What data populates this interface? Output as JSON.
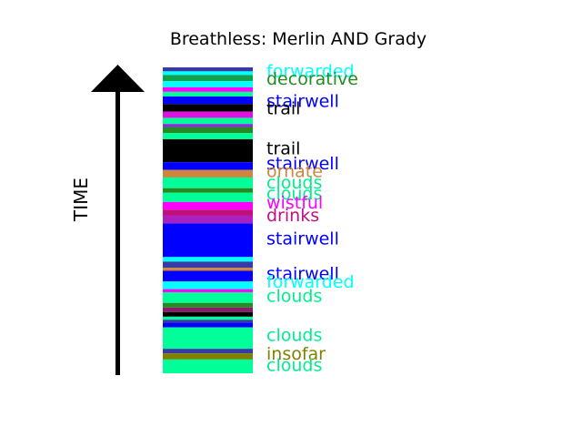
{
  "chart_data": {
    "type": "bar",
    "title": "Breathless: Merlin AND Grady",
    "ylabel": "TIME",
    "segments": [
      {
        "t0": 0.0,
        "t1": 0.013,
        "color": "#3a3aa6"
      },
      {
        "t0": 0.013,
        "t1": 0.025,
        "color": "#00ffff"
      },
      {
        "t0": 0.025,
        "t1": 0.045,
        "color": "#12a04a"
      },
      {
        "t0": 0.045,
        "t1": 0.065,
        "color": "#00ffff"
      },
      {
        "t0": 0.065,
        "t1": 0.08,
        "color": "#ff00ff"
      },
      {
        "t0": 0.08,
        "t1": 0.095,
        "color": "#00ff99"
      },
      {
        "t0": 0.095,
        "t1": 0.12,
        "color": "#0000ff"
      },
      {
        "t0": 0.12,
        "t1": 0.145,
        "color": "#000000"
      },
      {
        "t0": 0.145,
        "t1": 0.165,
        "color": "#e010e0"
      },
      {
        "t0": 0.165,
        "t1": 0.185,
        "color": "#00ff99"
      },
      {
        "t0": 0.185,
        "t1": 0.195,
        "color": "#8a2be2"
      },
      {
        "t0": 0.195,
        "t1": 0.215,
        "color": "#228b22"
      },
      {
        "t0": 0.215,
        "t1": 0.235,
        "color": "#00ff99"
      },
      {
        "t0": 0.235,
        "t1": 0.31,
        "color": "#000000"
      },
      {
        "t0": 0.31,
        "t1": 0.335,
        "color": "#0000ff"
      },
      {
        "t0": 0.335,
        "t1": 0.36,
        "color": "#cd853f"
      },
      {
        "t0": 0.36,
        "t1": 0.395,
        "color": "#00ff99"
      },
      {
        "t0": 0.395,
        "t1": 0.41,
        "color": "#228b22"
      },
      {
        "t0": 0.41,
        "t1": 0.44,
        "color": "#00ff99"
      },
      {
        "t0": 0.44,
        "t1": 0.465,
        "color": "#ff00ff"
      },
      {
        "t0": 0.465,
        "t1": 0.485,
        "color": "#c01080"
      },
      {
        "t0": 0.485,
        "t1": 0.51,
        "color": "#aa20c0"
      },
      {
        "t0": 0.51,
        "t1": 0.62,
        "color": "#0000ff"
      },
      {
        "t0": 0.62,
        "t1": 0.635,
        "color": "#00ffff"
      },
      {
        "t0": 0.635,
        "t1": 0.655,
        "color": "#3a3aa6"
      },
      {
        "t0": 0.655,
        "t1": 0.665,
        "color": "#cd853f"
      },
      {
        "t0": 0.665,
        "t1": 0.7,
        "color": "#0000ff"
      },
      {
        "t0": 0.7,
        "t1": 0.725,
        "color": "#00ffff"
      },
      {
        "t0": 0.725,
        "t1": 0.735,
        "color": "#ff00ff"
      },
      {
        "t0": 0.735,
        "t1": 0.77,
        "color": "#00ff99"
      },
      {
        "t0": 0.77,
        "t1": 0.785,
        "color": "#228b22"
      },
      {
        "t0": 0.785,
        "t1": 0.8,
        "color": "#8b1a6b"
      },
      {
        "t0": 0.8,
        "t1": 0.815,
        "color": "#000000"
      },
      {
        "t0": 0.815,
        "t1": 0.825,
        "color": "#00ff99"
      },
      {
        "t0": 0.825,
        "t1": 0.835,
        "color": "#3a3aa6"
      },
      {
        "t0": 0.835,
        "t1": 0.85,
        "color": "#0000ff"
      },
      {
        "t0": 0.85,
        "t1": 0.92,
        "color": "#00ff99"
      },
      {
        "t0": 0.92,
        "t1": 0.935,
        "color": "#3a3aa6"
      },
      {
        "t0": 0.935,
        "t1": 0.955,
        "color": "#808000"
      },
      {
        "t0": 0.955,
        "t1": 1.0,
        "color": "#00ff99"
      }
    ],
    "labels": [
      {
        "text": "forwarded",
        "t": 0.01,
        "color": "#00ffff"
      },
      {
        "text": "decorative",
        "t": 0.035,
        "color": "#228b22"
      },
      {
        "text": "stairwell",
        "t": 0.108,
        "color": "#0000ff"
      },
      {
        "text": "trail",
        "t": 0.133,
        "color": "#000000"
      },
      {
        "text": "trail",
        "t": 0.264,
        "color": "#000000"
      },
      {
        "text": "stairwell",
        "t": 0.312,
        "color": "#0000ff"
      },
      {
        "text": "ornate",
        "t": 0.338,
        "color": "#cd853f"
      },
      {
        "text": "clouds",
        "t": 0.375,
        "color": "#00ee90"
      },
      {
        "text": "clouds",
        "t": 0.41,
        "color": "#00ee90"
      },
      {
        "text": "wistful",
        "t": 0.44,
        "color": "#ff00ff"
      },
      {
        "text": "drinks",
        "t": 0.482,
        "color": "#c01080"
      },
      {
        "text": "stairwell",
        "t": 0.558,
        "color": "#0000ff"
      },
      {
        "text": "stairwell",
        "t": 0.672,
        "color": "#0000ff"
      },
      {
        "text": "forwarded",
        "t": 0.7,
        "color": "#00ffff"
      },
      {
        "text": "clouds",
        "t": 0.745,
        "color": "#00ee90"
      },
      {
        "text": "clouds",
        "t": 0.873,
        "color": "#00ee90"
      },
      {
        "text": "insofar",
        "t": 0.935,
        "color": "#808000"
      },
      {
        "text": "clouds",
        "t": 0.972,
        "color": "#00ee90"
      }
    ]
  }
}
